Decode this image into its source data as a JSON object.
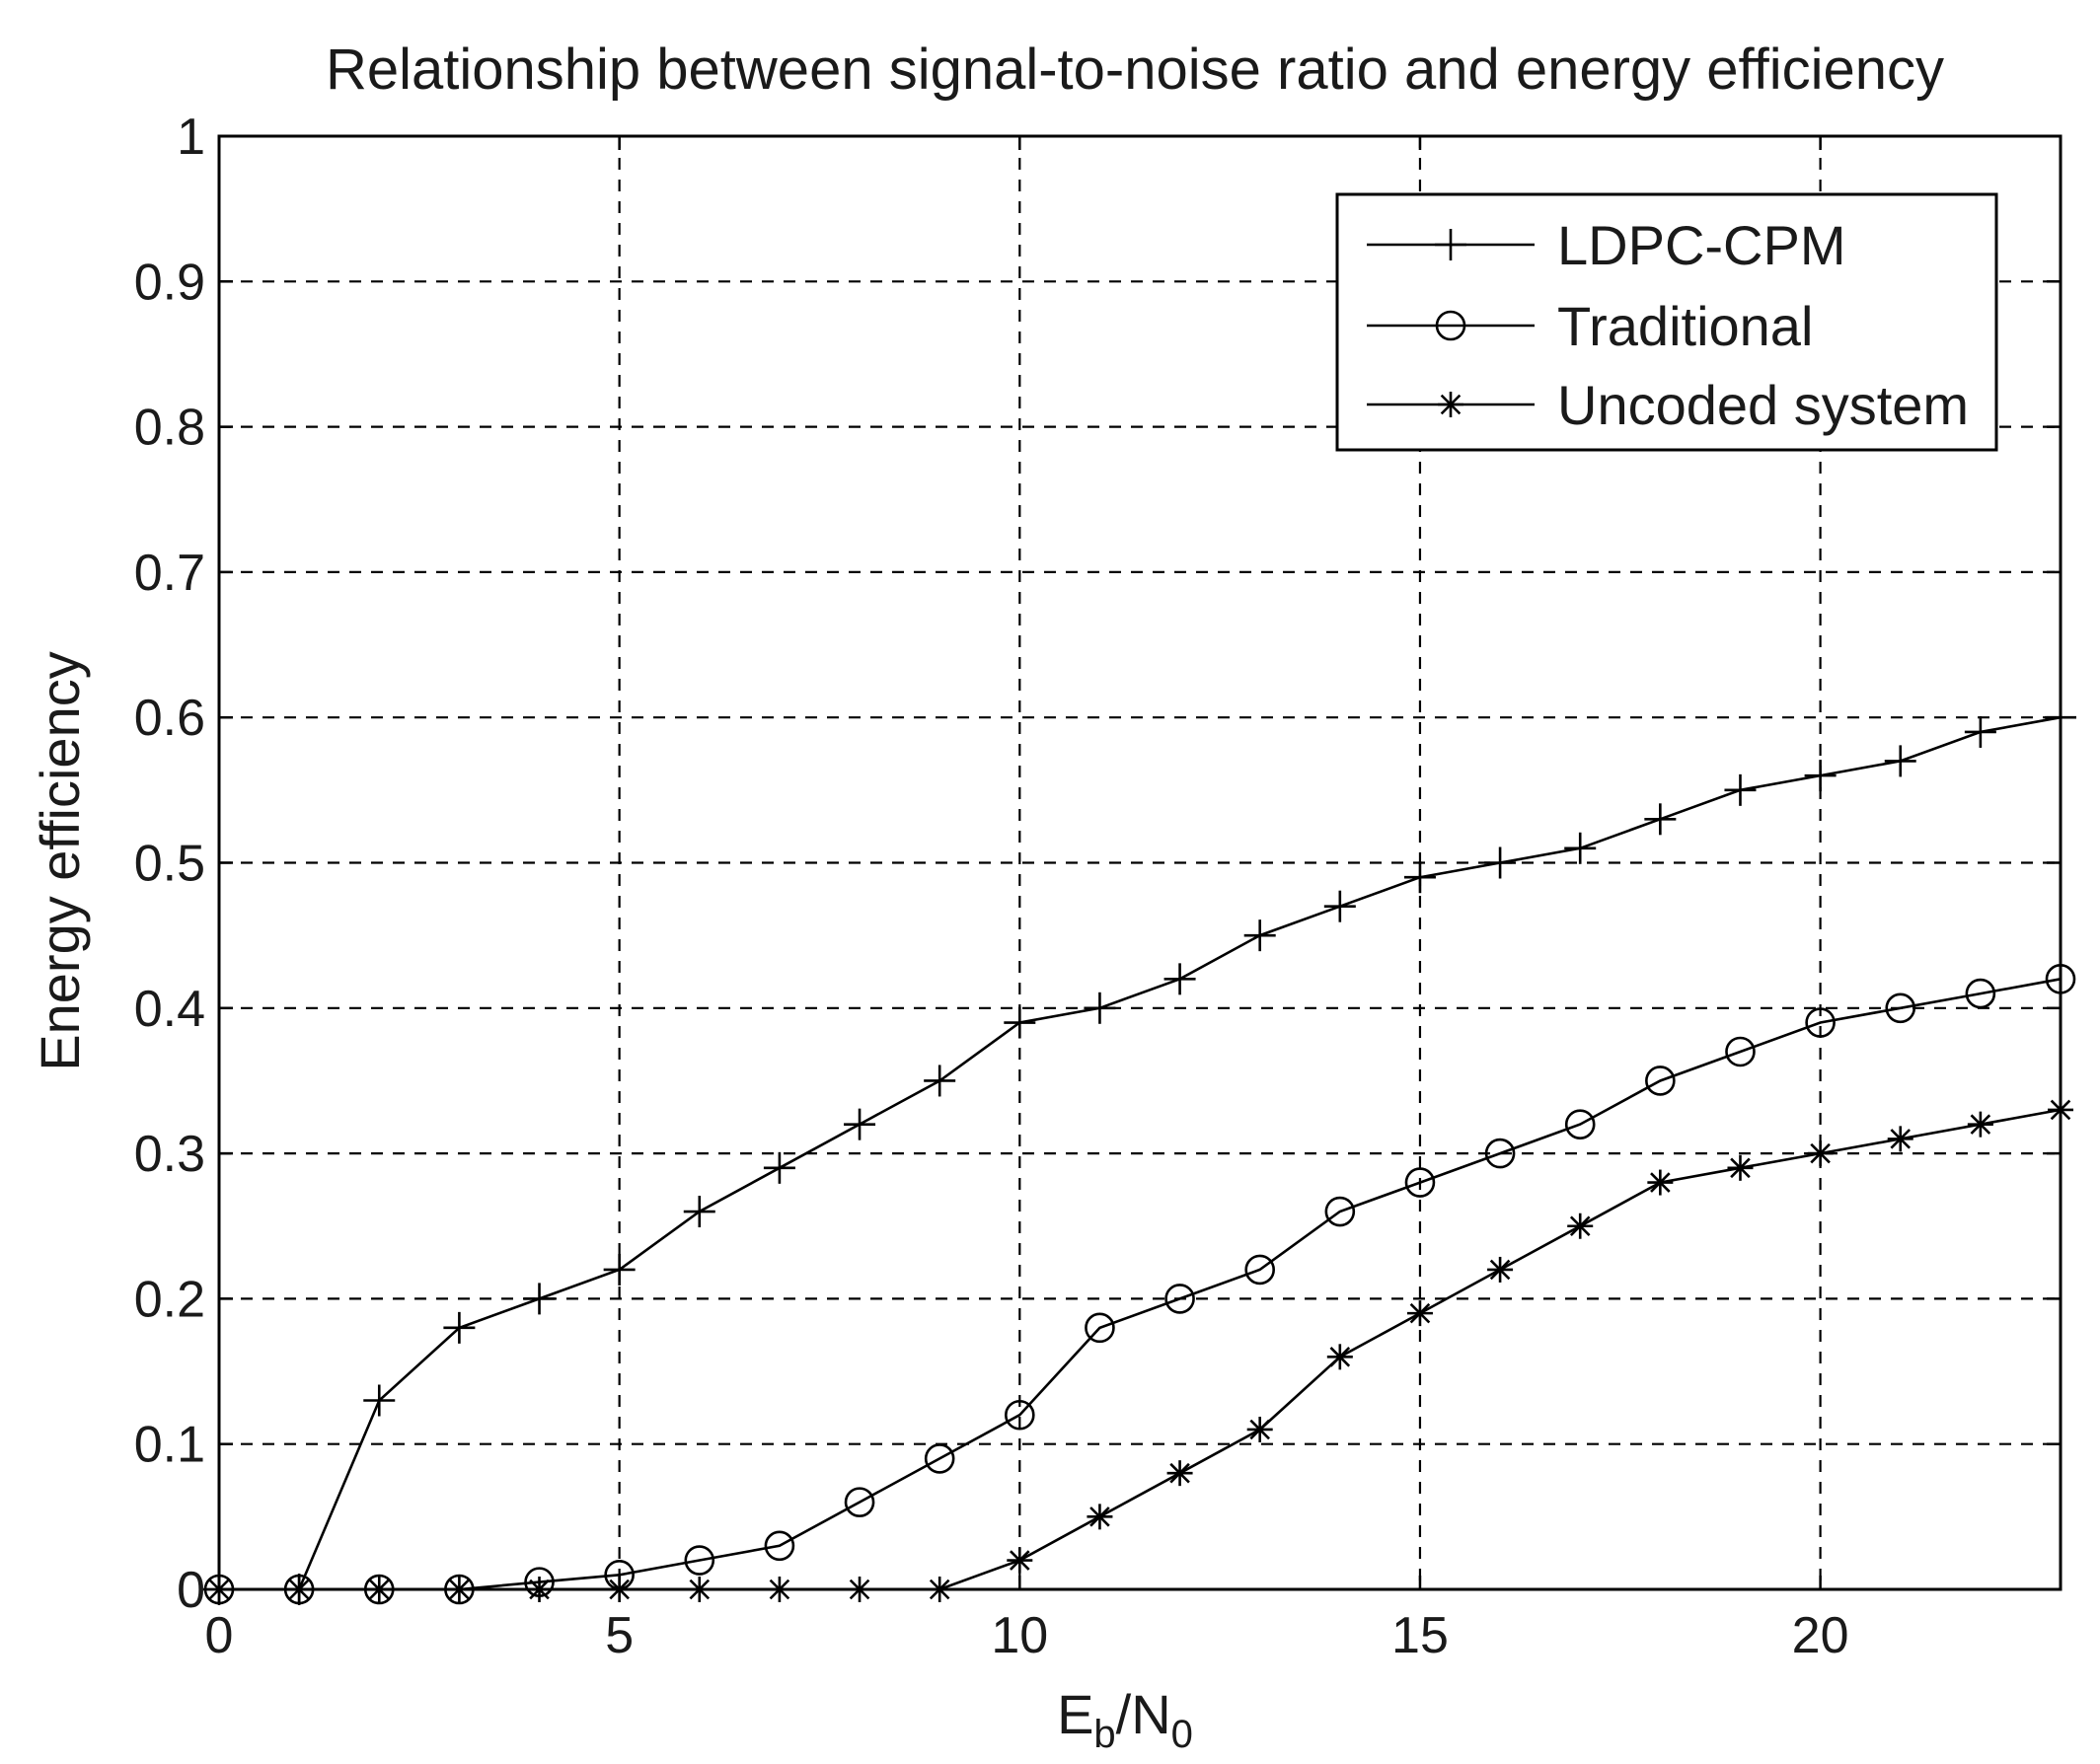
{
  "chart_data": {
    "type": "line",
    "title": "Relationship between signal-to-noise ratio and energy efficiency",
    "xlabel": {
      "main": "E",
      "sub1": "b",
      "mid": "/N",
      "sub2": "0"
    },
    "ylabel": "Energy efficiency",
    "xlim": [
      0,
      23
    ],
    "ylim": [
      0,
      1
    ],
    "xticks": [
      0,
      5,
      10,
      15,
      20
    ],
    "xtick_labels": [
      "0",
      "5",
      "10",
      "15",
      "20"
    ],
    "yticks": [
      0,
      0.1,
      0.2,
      0.3,
      0.4,
      0.5,
      0.6,
      0.7,
      0.8,
      0.9,
      1
    ],
    "ytick_labels": [
      "0",
      "0.1",
      "0.2",
      "0.3",
      "0.4",
      "0.5",
      "0.6",
      "0.7",
      "0.8",
      "0.9",
      "1"
    ],
    "grid": true,
    "legend_position": "top-right",
    "x": [
      0,
      1,
      2,
      3,
      4,
      5,
      6,
      7,
      8,
      9,
      10,
      11,
      12,
      13,
      14,
      15,
      16,
      17,
      18,
      19,
      20,
      21,
      22,
      23
    ],
    "series": [
      {
        "name": "LDPC-CPM",
        "marker": "plus",
        "values": [
          0,
          0,
          0.13,
          0.18,
          0.2,
          0.22,
          0.26,
          0.29,
          0.32,
          0.35,
          0.39,
          0.4,
          0.42,
          0.45,
          0.47,
          0.49,
          0.5,
          0.51,
          0.53,
          0.55,
          0.56,
          0.57,
          0.59,
          0.6
        ]
      },
      {
        "name": "Traditional",
        "marker": "circle",
        "values": [
          0,
          0,
          0,
          0,
          0.005,
          0.01,
          0.02,
          0.03,
          0.06,
          0.09,
          0.12,
          0.18,
          0.2,
          0.22,
          0.26,
          0.28,
          0.3,
          0.32,
          0.35,
          0.37,
          0.39,
          0.4,
          0.41,
          0.42
        ]
      },
      {
        "name": "Uncoded system",
        "marker": "star",
        "values": [
          0,
          0,
          0,
          0,
          0,
          0,
          0,
          0,
          0,
          0,
          0.02,
          0.05,
          0.08,
          0.11,
          0.16,
          0.19,
          0.22,
          0.25,
          0.28,
          0.29,
          0.3,
          0.31,
          0.32,
          0.33
        ]
      }
    ]
  }
}
